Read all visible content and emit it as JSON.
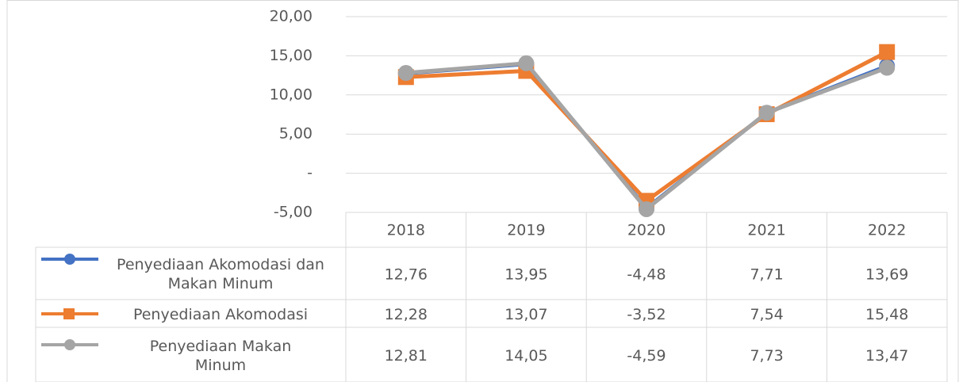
{
  "chart_data": {
    "type": "line",
    "categories": [
      "2018",
      "2019",
      "2020",
      "2021",
      "2022"
    ],
    "series": [
      {
        "name": "Penyediaan Akomodasi dan Makan Minum",
        "color": "#4472c4",
        "marker": "circle",
        "values": [
          12.76,
          13.95,
          -4.48,
          7.71,
          13.69
        ],
        "value_labels": [
          "12,76",
          "13,95",
          "-4,48",
          "7,71",
          "13,69"
        ]
      },
      {
        "name": "Penyediaan Akomodasi",
        "color": "#ed7d31",
        "marker": "square",
        "values": [
          12.28,
          13.07,
          -3.52,
          7.54,
          15.48
        ],
        "value_labels": [
          "12,28",
          "13,07",
          "-3,52",
          "7,54",
          "15,48"
        ]
      },
      {
        "name": "Penyediaan Makan Minum",
        "color": "#a5a5a5",
        "marker": "circle",
        "values": [
          12.81,
          14.05,
          -4.59,
          7.73,
          13.47
        ],
        "value_labels": [
          "12,81",
          "14,05",
          "-4,59",
          "7,73",
          "13,47"
        ]
      }
    ],
    "ylim": [
      -5,
      20
    ],
    "yticks": [
      {
        "value": -5,
        "label": "-5,00"
      },
      {
        "value": 0,
        "label": "-"
      },
      {
        "value": 5,
        "label": "5,00"
      },
      {
        "value": 10,
        "label": "10,00"
      },
      {
        "value": 15,
        "label": "15,00"
      },
      {
        "value": 20,
        "label": "20,00"
      }
    ],
    "grid": true,
    "legend": "data-table"
  }
}
